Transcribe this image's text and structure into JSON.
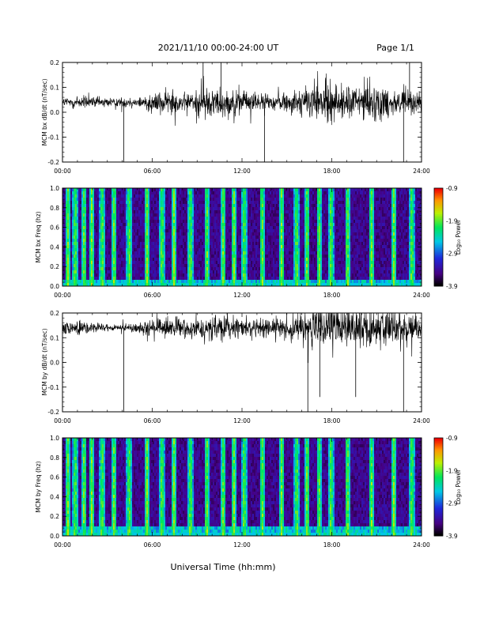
{
  "header": {
    "title": "2021/11/10  00:00-24:00 UT",
    "page": "Page 1/1"
  },
  "xlabel": "Universal Time (hh:mm)",
  "x_ticks": [
    "00:00",
    "06:00",
    "12:00",
    "18:00",
    "24:00"
  ],
  "colors": {
    "trace": "#000000",
    "background": "#ffffff"
  },
  "chart_data": [
    {
      "type": "line",
      "ylabel": "MCM bx dB/dt (nT/sec)",
      "xlim": [
        0,
        24
      ],
      "ylim": [
        -0.2,
        0.2
      ],
      "y_ticks": [
        "0.2",
        "0.1",
        "0.0",
        "-0.1",
        "-0.2"
      ],
      "baseline": 0.04,
      "activity": [
        {
          "hour": 0,
          "amp": 0.03
        },
        {
          "hour": 1,
          "amp": 0.04
        },
        {
          "hour": 2,
          "amp": 0.03
        },
        {
          "hour": 3,
          "amp": 0.03
        },
        {
          "hour": 4,
          "amp": 0.025
        },
        {
          "hour": 5,
          "amp": 0.03
        },
        {
          "hour": 6,
          "amp": 0.06
        },
        {
          "hour": 7,
          "amp": 0.07
        },
        {
          "hour": 8,
          "amp": 0.05
        },
        {
          "hour": 9,
          "amp": 0.07
        },
        {
          "hour": 10,
          "amp": 0.09
        },
        {
          "hour": 11,
          "amp": 0.08
        },
        {
          "hour": 12,
          "amp": 0.06
        },
        {
          "hour": 13,
          "amp": 0.05
        },
        {
          "hour": 14,
          "amp": 0.04
        },
        {
          "hour": 15,
          "amp": 0.06
        },
        {
          "hour": 16,
          "amp": 0.08
        },
        {
          "hour": 17,
          "amp": 0.11
        },
        {
          "hour": 18,
          "amp": 0.12
        },
        {
          "hour": 19,
          "amp": 0.09
        },
        {
          "hour": 20,
          "amp": 0.11
        },
        {
          "hour": 21,
          "amp": 0.1
        },
        {
          "hour": 22,
          "amp": 0.08
        },
        {
          "hour": 23,
          "amp": 0.07
        },
        {
          "hour": 24,
          "amp": 0.06
        }
      ],
      "spikes": [
        {
          "hour": 4.1,
          "value": -0.2
        },
        {
          "hour": 13.5,
          "value": -0.2
        },
        {
          "hour": 10.6,
          "value": 0.2
        },
        {
          "hour": 22.8,
          "value": -0.2
        },
        {
          "hour": 23.2,
          "value": 0.2
        },
        {
          "hour": 9.4,
          "value": 0.2
        }
      ]
    },
    {
      "type": "heatmap",
      "ylabel": "MCM bx Freq (hz)",
      "xlim": [
        0,
        24
      ],
      "ylim": [
        0.0,
        1.0
      ],
      "y_ticks": [
        "1.0",
        "0.8",
        "0.6",
        "0.4",
        "0.2",
        "0.0"
      ],
      "colorbar": {
        "label": "Log₁₀ Power",
        "ticks": [
          "-0.9",
          "-1.9",
          "-2.9",
          "-3.9"
        ],
        "range": [
          -3.9,
          -0.9
        ]
      },
      "bright_bands_hours": [
        0.3,
        0.8,
        1.4,
        1.9,
        2.6,
        3.4,
        4.4,
        5.6,
        6.6,
        7.4,
        8.5,
        9.6,
        10.7,
        11.4,
        12.1,
        13.3,
        14.6,
        15.6,
        16.3,
        17.1,
        17.9,
        19.0,
        20.6,
        22.1,
        23.3
      ],
      "low_freq_glow": 0.06
    },
    {
      "type": "line",
      "ylabel": "MCM by dB/dt (nT/sec)",
      "xlim": [
        0,
        24
      ],
      "ylim": [
        -0.2,
        0.2
      ],
      "y_ticks": [
        "0.2",
        "0.1",
        "0.0",
        "-0.1",
        "-0.2"
      ],
      "baseline": 0.14,
      "activity": [
        {
          "hour": 0,
          "amp": 0.04
        },
        {
          "hour": 1,
          "amp": 0.04
        },
        {
          "hour": 2,
          "amp": 0.03
        },
        {
          "hour": 3,
          "amp": 0.02
        },
        {
          "hour": 4,
          "amp": 0.02
        },
        {
          "hour": 5,
          "amp": 0.03
        },
        {
          "hour": 6,
          "amp": 0.05
        },
        {
          "hour": 7,
          "amp": 0.06
        },
        {
          "hour": 8,
          "amp": 0.05
        },
        {
          "hour": 9,
          "amp": 0.06
        },
        {
          "hour": 10,
          "amp": 0.08
        },
        {
          "hour": 11,
          "amp": 0.07
        },
        {
          "hour": 12,
          "amp": 0.06
        },
        {
          "hour": 13,
          "amp": 0.05
        },
        {
          "hour": 14,
          "amp": 0.05
        },
        {
          "hour": 15,
          "amp": 0.07
        },
        {
          "hour": 16,
          "amp": 0.09
        },
        {
          "hour": 17,
          "amp": 0.12
        },
        {
          "hour": 18,
          "amp": 0.14
        },
        {
          "hour": 19,
          "amp": 0.12
        },
        {
          "hour": 20,
          "amp": 0.13
        },
        {
          "hour": 21,
          "amp": 0.12
        },
        {
          "hour": 22,
          "amp": 0.1
        },
        {
          "hour": 23,
          "amp": 0.08
        },
        {
          "hour": 24,
          "amp": 0.07
        }
      ],
      "spikes": [
        {
          "hour": 4.1,
          "value": -0.2
        },
        {
          "hour": 16.4,
          "value": -0.2
        },
        {
          "hour": 22.8,
          "value": -0.2
        },
        {
          "hour": 17.2,
          "value": -0.14
        },
        {
          "hour": 19.6,
          "value": -0.14
        }
      ]
    },
    {
      "type": "heatmap",
      "ylabel": "MCM by Freq (hz)",
      "xlim": [
        0,
        24
      ],
      "ylim": [
        0.0,
        1.0
      ],
      "y_ticks": [
        "1.0",
        "0.8",
        "0.6",
        "0.4",
        "0.2",
        "0.0"
      ],
      "colorbar": {
        "label": "Log₁₀ Power",
        "ticks": [
          "-0.9",
          "-1.9",
          "-2.9",
          "-3.9"
        ],
        "range": [
          -3.9,
          -0.9
        ]
      },
      "bright_bands_hours": [
        0.3,
        0.8,
        1.4,
        1.9,
        2.6,
        3.4,
        4.4,
        5.6,
        6.6,
        7.4,
        8.5,
        9.6,
        10.7,
        11.4,
        12.1,
        13.3,
        14.6,
        15.6,
        16.3,
        17.1,
        17.9,
        19.0,
        20.6,
        22.1,
        23.3
      ],
      "low_freq_glow": 0.1
    }
  ]
}
